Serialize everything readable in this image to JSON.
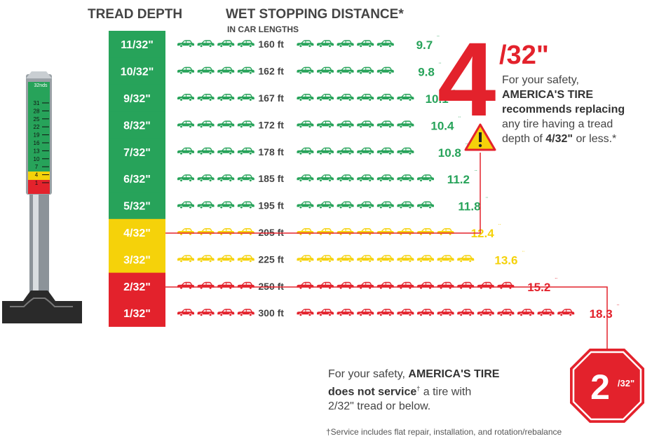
{
  "headers": {
    "tread_depth": "TREAD DEPTH",
    "wet_stopping": "WET STOPPING DISTANCE*",
    "units": "IN CAR LENGTHS"
  },
  "colors": {
    "green": "#27a35a",
    "yellow": "#f5d20a",
    "red": "#e3222c"
  },
  "chart_data": {
    "type": "table",
    "rows": [
      {
        "depth": "11/32\"",
        "feet": "160 ft",
        "car_lengths": "9.7",
        "mark": "¨",
        "cars": 9.7,
        "zone": "green"
      },
      {
        "depth": "10/32\"",
        "feet": "162 ft",
        "car_lengths": "9.8",
        "mark": "¨",
        "cars": 9.8,
        "zone": "green"
      },
      {
        "depth": "9/32\"",
        "feet": "167 ft",
        "car_lengths": "10.1",
        "mark": "¨",
        "cars": 10.1,
        "zone": "green"
      },
      {
        "depth": "8/32\"",
        "feet": "172 ft",
        "car_lengths": "10.4",
        "mark": "¨",
        "cars": 10.4,
        "zone": "green"
      },
      {
        "depth": "7/32\"",
        "feet": "178 ft",
        "car_lengths": "10.8",
        "mark": "¨",
        "cars": 10.8,
        "zone": "green"
      },
      {
        "depth": "6/32\"",
        "feet": "185 ft",
        "car_lengths": "11.2",
        "mark": "¨",
        "cars": 11.2,
        "zone": "green"
      },
      {
        "depth": "5/32\"",
        "feet": "195 ft",
        "car_lengths": "11.8",
        "mark": "¨",
        "cars": 11.8,
        "zone": "green"
      },
      {
        "depth": "4/32\"",
        "feet": "205 ft",
        "car_lengths": "12.4",
        "mark": "¨",
        "cars": 12.4,
        "zone": "yellow"
      },
      {
        "depth": "3/32\"",
        "feet": "225 ft",
        "car_lengths": "13.6",
        "mark": "¨",
        "cars": 13.6,
        "zone": "yellow"
      },
      {
        "depth": "2/32\"",
        "feet": "250 ft",
        "car_lengths": "15.2",
        "mark": "¨",
        "cars": 15.2,
        "zone": "red"
      },
      {
        "depth": "1/32\"",
        "feet": "300 ft",
        "car_lengths": "18.3",
        "mark": "¨",
        "cars": 18.3,
        "zone": "red"
      }
    ]
  },
  "gauge": {
    "top_label": "32nds",
    "numbers": [
      "31",
      "28",
      "25",
      "22",
      "19",
      "16",
      "13",
      "10",
      "7",
      "4",
      "1"
    ],
    "yellow_fraction": 0.094,
    "red_fraction": 0.094
  },
  "callout4": {
    "big": "4",
    "small": "/32\"",
    "line1": "For your safety,",
    "bold1": "AMERICA'S TIRE",
    "bold2": "recommends replacing",
    "line2": "any tire having a tread",
    "line3_pre": "depth of ",
    "line3_bold": "4/32\"",
    "line3_post": " or less.*"
  },
  "callout2": {
    "sign_big": "2",
    "sign_small": "/32\"",
    "pre": "For your safety, ",
    "bold1": "AMERICA'S TIRE",
    "bold2": "does not service",
    "dagger": "†",
    "post1": " a tire with",
    "post2": "2/32\" tread or below."
  },
  "footnote": "†Service includes flat repair, installation, and rotation/rebalance"
}
